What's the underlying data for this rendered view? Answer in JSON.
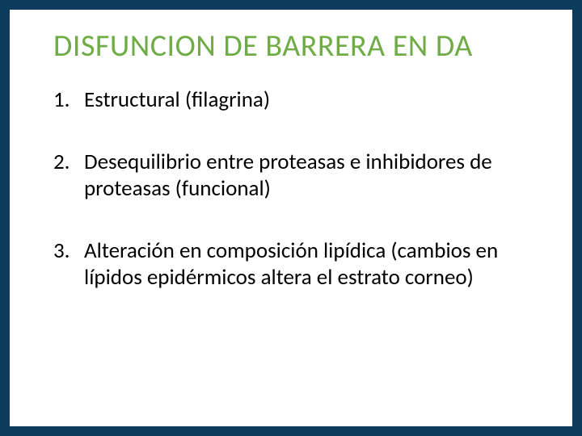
{
  "slide": {
    "title": "DISFUNCION DE BARRERA EN DA",
    "title_color": "#6fac46",
    "title_fontsize": 38,
    "background_color": "#ffffff",
    "outer_border_color": "#0d3b5e",
    "body_color": "#000000",
    "body_fontsize": 27,
    "items": [
      {
        "num": "1.",
        "text": "Estructural (filagrina)"
      },
      {
        "num": "2.",
        "text": "Desequilibrio entre proteasas e inhibidores de proteasas (funcional)"
      },
      {
        "num": "3.",
        "text": "Alteración en composición lipídica (cambios en lípidos epidérmicos altera  el estrato corneo)"
      }
    ]
  }
}
